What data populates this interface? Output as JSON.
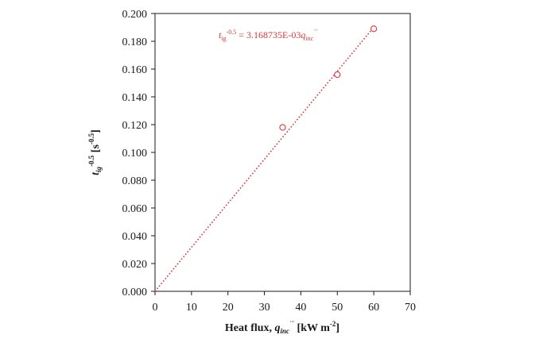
{
  "chart_data": {
    "type": "scatter",
    "x_label": {
      "prefix": "Heat flux, ",
      "var": "q",
      "sub": "inc",
      "sup": "˙˝",
      "suffix_open": " [kW m",
      "suffix_exp": "-2",
      "suffix_close": "]"
    },
    "y_label": {
      "var": "t",
      "sub": "ig",
      "sup": "-0.5",
      "unit_open": " [s",
      "unit_exp": "-0.5",
      "unit_close": "]"
    },
    "xlim": [
      0,
      70
    ],
    "ylim": [
      0,
      0.2
    ],
    "x_ticks": [
      "0",
      "10",
      "20",
      "30",
      "40",
      "50",
      "60",
      "70"
    ],
    "y_ticks": [
      "0.000",
      "0.020",
      "0.040",
      "0.060",
      "0.080",
      "0.100",
      "0.120",
      "0.140",
      "0.160",
      "0.180",
      "0.200"
    ],
    "grid": false,
    "series": [
      {
        "x": [
          35,
          50,
          60
        ],
        "y": [
          0.118,
          0.156,
          0.189
        ],
        "marker": "open-circle",
        "color": "#d9383a"
      }
    ],
    "fit_line": {
      "slope": 0.003168735,
      "intercept": 0,
      "x_range": [
        0,
        60
      ],
      "style": "dotted",
      "color": "#d9383a"
    },
    "annotation": {
      "var": "t",
      "sub": "ig",
      "sup": "-0.5",
      "equals": " = 3.168735E-03",
      "var2": "q",
      "sub2": "inc",
      "sup2": "˙˝"
    }
  }
}
